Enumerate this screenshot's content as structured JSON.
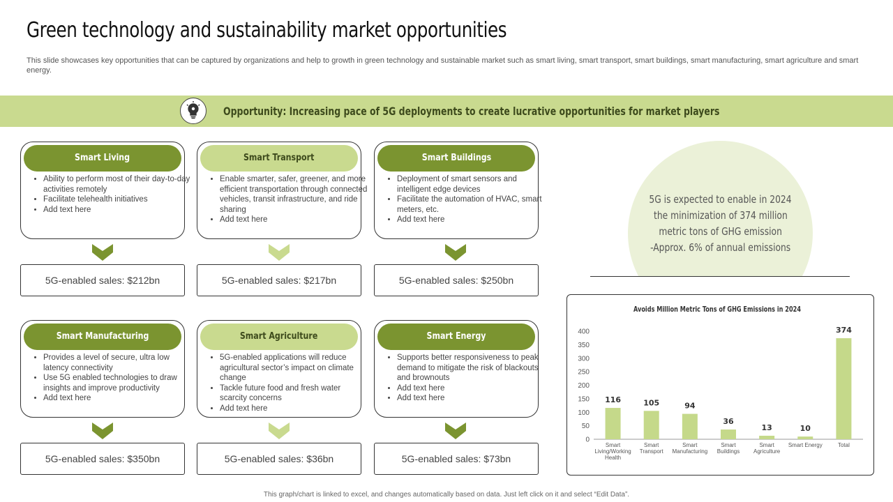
{
  "title": "Green technology and sustainability market opportunities",
  "subtitle": "This slide showcases key opportunities that can be captured by organizations and help to growth in green technology and sustainable market such as smart living, smart transport, smart buildings, smart manufacturing, smart agriculture and smart energy.",
  "banner": {
    "text": "Opportunity:  Increasing  pace  of  5G  deployments  to  create  lucrative  opportunities  for  market  players",
    "icon": "lightbulb-gear-icon"
  },
  "cards": [
    {
      "title": "Smart Living",
      "bullets": [
        "Ability to perform most of their day-to-day activities remotely",
        "Facilitate telehealth initiatives",
        "Add text here"
      ],
      "sales": "5G-enabled sales: $212bn"
    },
    {
      "title": "Smart Transport",
      "bullets": [
        "Enable smarter, safer, greener, and more efficient transportation through connected vehicles, transit infrastructure, and ride sharing",
        "Add text here"
      ],
      "sales": "5G-enabled sales: $217bn"
    },
    {
      "title": "Smart Buildings",
      "bullets": [
        "Deployment of smart sensors and intelligent edge devices",
        "Facilitate the automation of HVAC, smart meters, etc.",
        "Add text here"
      ],
      "sales": "5G-enabled sales: $250bn"
    },
    {
      "title": "Smart Manufacturing",
      "bullets": [
        "Provides a level of secure, ultra low latency connectivity",
        "Use 5G enabled technologies to draw insights and improve productivity",
        "Add text here"
      ],
      "sales": "5G-enabled sales: $350bn"
    },
    {
      "title": "Smart Agriculture",
      "bullets": [
        "5G-enabled applications will reduce agricultural sector’s impact on climate change",
        "Tackle future food and fresh water scarcity concerns",
        "Add text here"
      ],
      "sales": "5G-enabled sales: $36bn"
    },
    {
      "title": "Smart Energy",
      "bullets": [
        "Supports better responsiveness to peak demand to mitigate the risk of blackouts and brownouts",
        "Add text here",
        "Add text here"
      ],
      "sales": "5G-enabled sales: $73bn"
    }
  ],
  "highlight": {
    "lines": [
      "5G is expected to enable in 2024",
      "the minimization of 374 million",
      "metric tons of GHG emission",
      "-Approx. 6% of annual emissions"
    ]
  },
  "colors": {
    "dark_green": "#7b9430",
    "light_green": "#c9da8f",
    "bar": "#c5d98a",
    "circle": "#ebf1d8"
  },
  "chart_data": {
    "type": "bar",
    "title": "Avoids Million Metric Tons of GHG Emissions in 2024",
    "categories": [
      "Smart Living/Working Health",
      "Smart Transport",
      "Smart Manufacturing",
      "Smart Buildings",
      "Smart Agriculture",
      "Smart Energy",
      "Total"
    ],
    "values": [
      116,
      105,
      94,
      36,
      13,
      10,
      374
    ],
    "ylim": [
      0,
      400
    ],
    "yticks": [
      0,
      50,
      100,
      150,
      200,
      250,
      300,
      350,
      400
    ],
    "grid": false,
    "xlabel": "",
    "ylabel": ""
  },
  "footer": "This graph/chart is linked to excel, and changes automatically based on data. Just left click on it and select “Edit Data”."
}
